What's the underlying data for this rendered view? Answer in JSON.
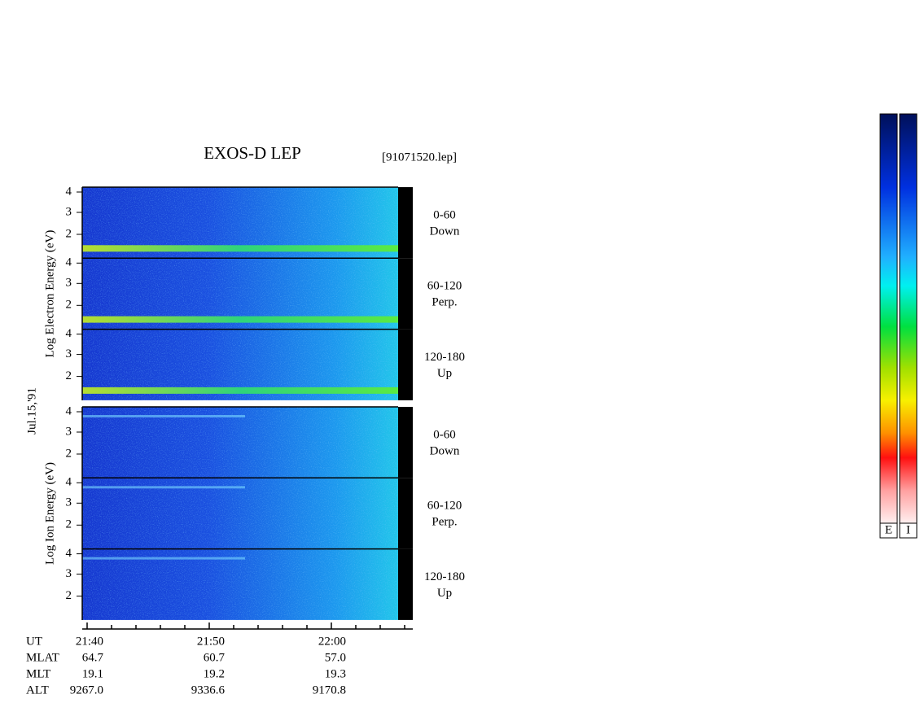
{
  "header": {
    "title": "EXOS-D LEP",
    "file": "[91071520.lep]",
    "date": "Jul.15,'91"
  },
  "groups": [
    {
      "axis_label": "Log Electron Energy (eV)",
      "panels": [
        {
          "angle": "0-60",
          "direction": "Down",
          "ticks": [
            "4",
            "3",
            "2"
          ]
        },
        {
          "angle": "60-120",
          "direction": "Perp.",
          "ticks": [
            "4",
            "3",
            "2"
          ]
        },
        {
          "angle": "120-180",
          "direction": "Up",
          "ticks": [
            "4",
            "3",
            "2"
          ]
        }
      ]
    },
    {
      "axis_label": "Log Ion Energy (eV)",
      "panels": [
        {
          "angle": "0-60",
          "direction": "Down",
          "ticks": [
            "4",
            "3",
            "2"
          ]
        },
        {
          "angle": "60-120",
          "direction": "Perp.",
          "ticks": [
            "4",
            "3",
            "2"
          ]
        },
        {
          "angle": "120-180",
          "direction": "Up",
          "ticks": [
            "4",
            "3",
            "2"
          ]
        }
      ]
    }
  ],
  "orbit": {
    "rows": [
      {
        "label": "UT",
        "values": [
          "21:40",
          "21:50",
          "22:00"
        ]
      },
      {
        "label": "MLAT",
        "values": [
          "64.7",
          "60.7",
          "57.0"
        ]
      },
      {
        "label": "MLT",
        "values": [
          "19.1",
          "19.2",
          "19.3"
        ]
      },
      {
        "label": "ALT",
        "values": [
          "9267.0",
          "9336.6",
          "9170.8"
        ]
      }
    ]
  },
  "colorbars": [
    "E",
    "I"
  ]
}
